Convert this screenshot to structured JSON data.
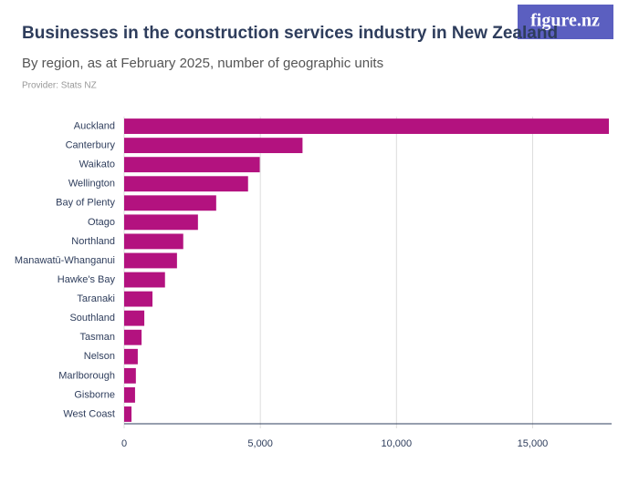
{
  "logo": "figure.nz",
  "chart_data": {
    "type": "bar",
    "orientation": "horizontal",
    "title": "Businesses in the construction services industry in New Zealand",
    "subtitle": "By region, as at February 2025, number of geographic units",
    "provider": "Provider: Stats NZ",
    "categories": [
      "Auckland",
      "Canterbury",
      "Waikato",
      "Wellington",
      "Bay of Plenty",
      "Otago",
      "Northland",
      "Manawatū-Whanganui",
      "Hawke's Bay",
      "Taranaki",
      "Southland",
      "Tasman",
      "Nelson",
      "Marlborough",
      "Gisborne",
      "West Coast"
    ],
    "values": [
      17800,
      6550,
      4980,
      4550,
      3380,
      2710,
      2170,
      1940,
      1500,
      1040,
      740,
      640,
      500,
      430,
      400,
      270
    ],
    "color": "#b3127f",
    "xlim": [
      0,
      17900
    ],
    "xticks": [
      0,
      {
        "value": 5000,
        "label": "5,000"
      },
      {
        "value": 10000,
        "label": "10,000"
      },
      {
        "value": 15000,
        "label": "15,000"
      }
    ],
    "grid": true
  }
}
